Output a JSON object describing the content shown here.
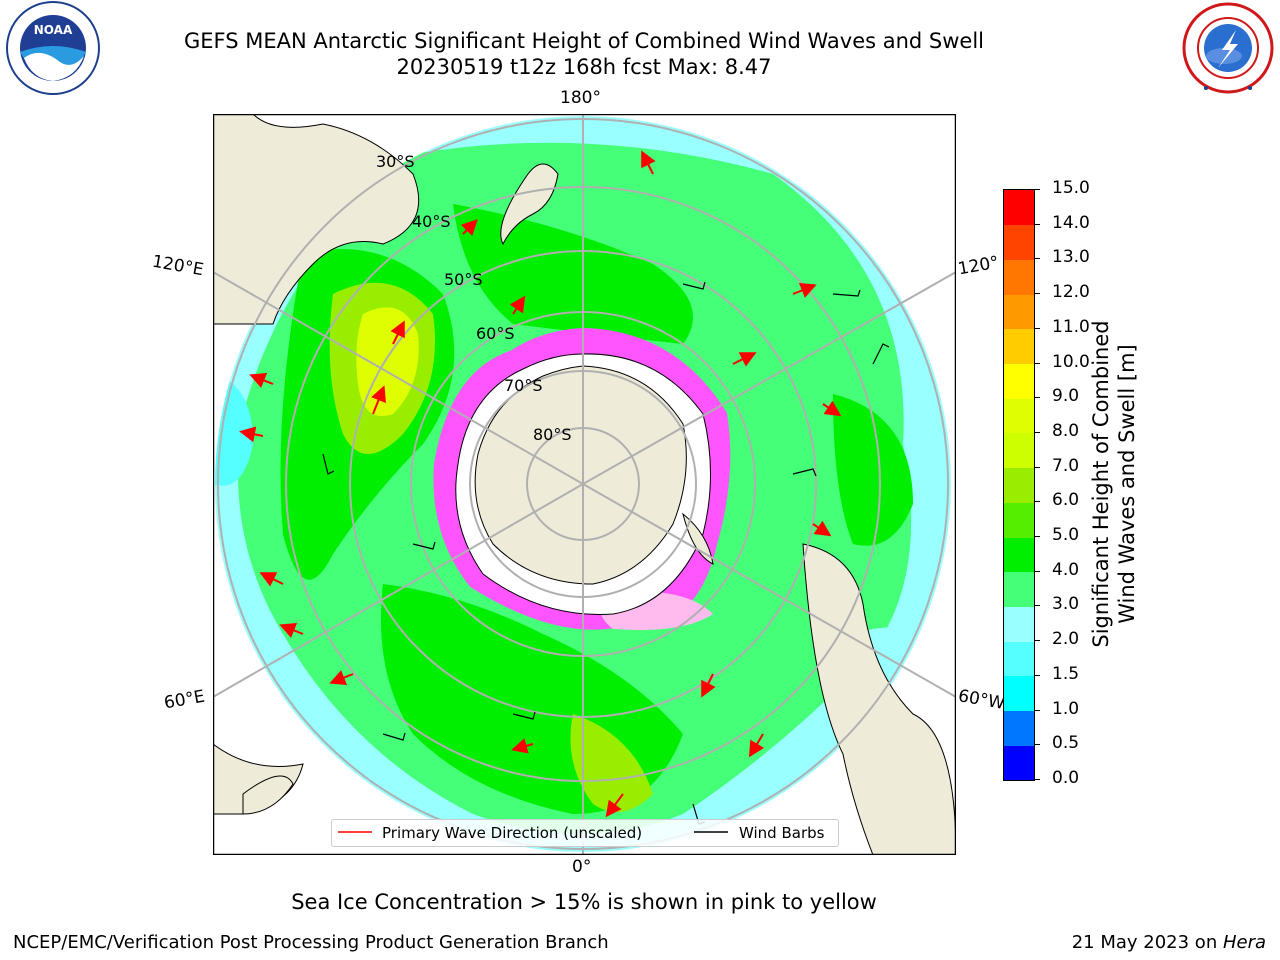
{
  "title_line1": "GEFS MEAN Antarctic Significant Height of Combined Wind Waves and Swell",
  "title_line2": "20230519 t12z 168h fcst   Max: 8.47",
  "logos": {
    "left": "NOAA",
    "left_ring": "NATIONAL OCEANIC AND ATMOSPHERIC ADMINISTRATION · U.S. DEPARTMENT OF COMMERCE",
    "right_ring": "NATIONAL WEATHER SERVICE"
  },
  "map": {
    "projection": "south-polar-stereographic",
    "longitude_labels": {
      "top": "180°",
      "bottom": "0°",
      "upper_left": "120°E",
      "lower_left": "60°E",
      "upper_right": "120°",
      "lower_right": "60°W"
    },
    "latitude_labels": [
      "30°S",
      "40°S",
      "50°S",
      "60°S",
      "70°S",
      "80°S"
    ],
    "land_color": "#efebd9",
    "sea_ice_colors": [
      "#ff55ff",
      "#ffbbee",
      "#ffdd55"
    ]
  },
  "colorbar": {
    "ticks": [
      "0.0",
      "0.5",
      "1.0",
      "1.5",
      "2.0",
      "3.0",
      "4.0",
      "5.0",
      "6.0",
      "7.0",
      "8.0",
      "9.0",
      "10.0",
      "11.0",
      "12.0",
      "13.0",
      "14.0",
      "15.0"
    ],
    "colors": [
      "#0000ff",
      "#0077ff",
      "#00ffff",
      "#55ffff",
      "#99ffff",
      "#44ff77",
      "#00ee00",
      "#55ee00",
      "#99ee00",
      "#ccff00",
      "#ddff00",
      "#ffff00",
      "#ffcc00",
      "#ff9900",
      "#ff7700",
      "#ff4400",
      "#ff0000"
    ],
    "label_line1": "Significant Height of Combined",
    "label_line2": "Wind Waves and Swell [m]"
  },
  "legend": {
    "wave_label": "Primary Wave Direction (unscaled)",
    "wind_label": "Wind Barbs",
    "wave_color": "#ff0000",
    "wind_color": "#000000"
  },
  "note": "Sea Ice Concentration > 15% is shown in pink to yellow",
  "footer": {
    "left": "NCEP/EMC/Verification Post Processing Product Generation Branch",
    "right_date": "21 May 2023 on ",
    "right_host": "Hera"
  }
}
